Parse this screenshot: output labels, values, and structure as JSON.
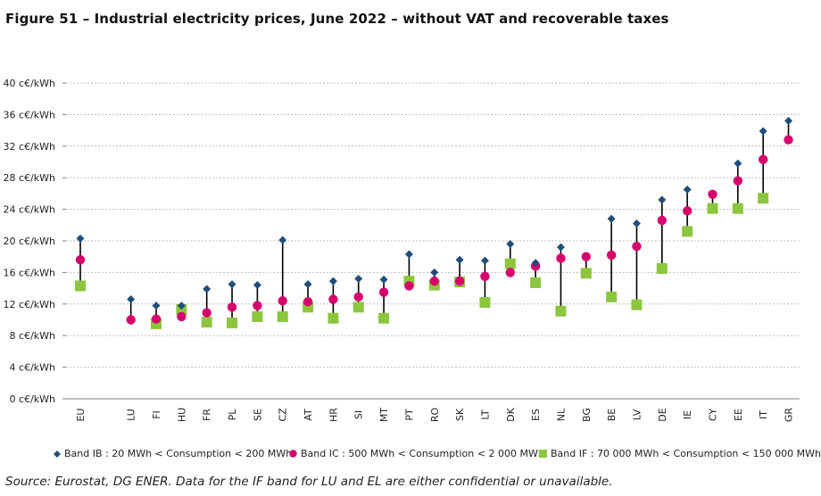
{
  "figure": {
    "title": "Figure 51 – Industrial electricity prices, June 2022 – without VAT and recoverable taxes",
    "source": "Source: Eurostat, DG ENER. Data for the IF band for LU and EL are either confidential or unavailable."
  },
  "colors": {
    "band_ib": "#1f4e79",
    "band_ic": "#d6006d",
    "band_if": "#8cc63f",
    "stem": "#000000",
    "grid": "#bfbfbf",
    "axis_text": "#222222"
  },
  "chart_data": {
    "type": "scatter",
    "title": "",
    "xlabel": "",
    "ylabel": "",
    "y_unit": "c€/kWh",
    "ylim": [
      0,
      40
    ],
    "y_ticks": [
      0,
      4,
      8,
      12,
      16,
      20,
      24,
      28,
      32,
      36,
      40
    ],
    "y_tick_labels": [
      "0 c€/kWh",
      "4 c€/kWh",
      "8 c€/kWh",
      "12 c€/kWh",
      "16 c€/kWh",
      "20 c€/kWh",
      "24 c€/kWh",
      "28 c€/kWh",
      "32 c€/kWh",
      "36 c€/kWh",
      "40 c€/kWh"
    ],
    "grid": true,
    "legend_position": "bottom",
    "categories": [
      "EU",
      "",
      "LU",
      "FI",
      "HU",
      "FR",
      "PL",
      "SE",
      "CZ",
      "AT",
      "HR",
      "SI",
      "MT",
      "PT",
      "RO",
      "SK",
      "LT",
      "DK",
      "ES",
      "NL",
      "BG",
      "BE",
      "LV",
      "DE",
      "IE",
      "CY",
      "EE",
      "IT",
      "GR"
    ],
    "series": [
      {
        "name": "Band IB : 20 MWh < Consumption < 200 MWh",
        "marker": "diamond",
        "values": [
          20.3,
          null,
          12.6,
          11.8,
          11.8,
          13.9,
          14.5,
          14.4,
          20.1,
          14.5,
          14.9,
          15.2,
          15.1,
          18.3,
          16.0,
          17.6,
          17.5,
          19.6,
          17.2,
          19.2,
          null,
          22.8,
          22.2,
          25.2,
          26.5,
          null,
          29.8,
          33.9,
          35.2
        ]
      },
      {
        "name": "Band IC : 500 MWh < Consumption < 2 000 MWh",
        "marker": "circle",
        "values": [
          17.6,
          null,
          10.0,
          10.1,
          10.4,
          10.9,
          11.6,
          11.8,
          12.4,
          12.3,
          12.6,
          12.9,
          13.5,
          14.3,
          14.9,
          14.9,
          15.5,
          16.0,
          16.8,
          17.8,
          18.0,
          18.2,
          19.3,
          22.6,
          23.8,
          25.9,
          27.6,
          30.3,
          32.8
        ]
      },
      {
        "name": "Band IF : 70 000 MWh < Consumption < 150 000 MWh",
        "marker": "square",
        "values": [
          14.3,
          null,
          null,
          9.5,
          11.3,
          9.7,
          9.6,
          10.4,
          10.4,
          11.6,
          10.2,
          11.6,
          10.2,
          14.9,
          14.4,
          14.8,
          12.2,
          17.1,
          14.7,
          11.1,
          15.9,
          12.9,
          11.9,
          16.5,
          21.2,
          24.1,
          24.1,
          25.4,
          null
        ]
      }
    ]
  }
}
